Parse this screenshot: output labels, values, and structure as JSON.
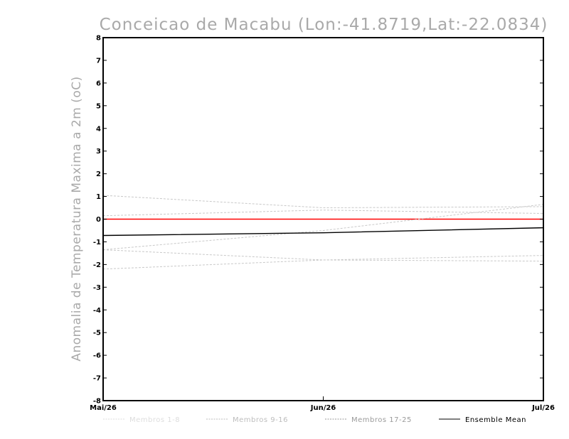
{
  "chart_data": {
    "type": "line",
    "title": "Conceicao de Macabu (Lon:-41.8719,Lat:-22.0834)",
    "ylabel": "Anomalia de Temperatura Maxima a 2m (oC)",
    "xlabel": "",
    "x_tick_labels": [
      "Mai/26",
      "Jun/26",
      "Jul/26"
    ],
    "y_ticks": [
      8,
      7,
      6,
      5,
      4,
      3,
      2,
      1,
      0,
      -1,
      -2,
      -3,
      -4,
      -5,
      -6,
      -7,
      -8
    ],
    "xlim": [
      0,
      2
    ],
    "ylim": [
      -8,
      8
    ],
    "grid": false,
    "zero_line": {
      "value": 0,
      "color": "#ff0000"
    },
    "legend": {
      "placement": "bottom",
      "entries": [
        {
          "label": "Membros 1-8",
          "color": "#dddddd"
        },
        {
          "label": "Membros 9-16",
          "color": "#bdbdbd"
        },
        {
          "label": "Membros 17-25",
          "color": "#9a9a9a"
        },
        {
          "label": "Ensemble Mean",
          "color": "#000000"
        }
      ]
    },
    "series": [
      {
        "group": "Membros 1-8",
        "color": "#c8c8c8",
        "x": [
          0,
          1,
          2
        ],
        "values": [
          1.05,
          0.5,
          0.55
        ]
      },
      {
        "group": "Membros 1-8",
        "color": "#c8c8c8",
        "x": [
          0,
          1,
          2
        ],
        "values": [
          0.15,
          0.4,
          0.25
        ]
      },
      {
        "group": "Membros 9-16",
        "color": "#c8c8c8",
        "x": [
          0,
          1,
          2
        ],
        "values": [
          -1.35,
          -0.5,
          0.65
        ]
      },
      {
        "group": "Membros 9-16",
        "color": "#c8c8c8",
        "x": [
          0,
          1,
          2
        ],
        "values": [
          -1.35,
          -1.8,
          -1.6
        ]
      },
      {
        "group": "Membros 17-25",
        "color": "#c8c8c8",
        "x": [
          0,
          1,
          2
        ],
        "values": [
          -2.2,
          -1.8,
          -1.85
        ]
      },
      {
        "group": "Ensemble Mean",
        "color": "#000000",
        "x": [
          0,
          1,
          2
        ],
        "values": [
          -0.72,
          -0.6,
          -0.38
        ]
      }
    ]
  }
}
